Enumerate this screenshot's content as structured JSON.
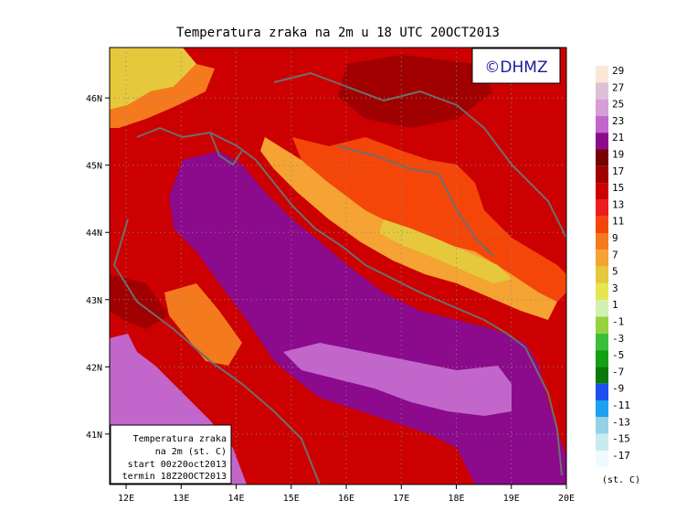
{
  "title": "Temperatura zraka na 2m u 18 UTC 20OCT2013",
  "watermark": "©DHMZ",
  "axes": {
    "x_ticks": [
      "12E",
      "13E",
      "14E",
      "15E",
      "16E",
      "17E",
      "18E",
      "19E",
      "20E"
    ],
    "y_ticks": [
      "46N",
      "45N",
      "44N",
      "43N",
      "42N",
      "41N"
    ]
  },
  "info_box": {
    "line1": "Temperatura zraka",
    "line2": "na 2m (st. C)",
    "line3": "start 00z20oct2013",
    "line4": "termin 18Z20OCT2013"
  },
  "legend": {
    "unit": "(st. C)",
    "labels": [
      "29",
      "27",
      "25",
      "23",
      "21",
      "19",
      "17",
      "15",
      "13",
      "11",
      "9",
      "7",
      "5",
      "3",
      "1",
      "-1",
      "-3",
      "-5",
      "-7",
      "-9",
      "-11",
      "-13",
      "-15",
      "-17"
    ],
    "colors": [
      "#fbe7d6",
      "#dcc1d6",
      "#d69ed6",
      "#c266cc",
      "#8c0a8c",
      "#780000",
      "#a00000",
      "#cc0000",
      "#ee1c1c",
      "#f5460a",
      "#f57a1e",
      "#f5a332",
      "#e6c83c",
      "#e6e650",
      "#d2f0b4",
      "#96d23c",
      "#3cbe3c",
      "#14a014",
      "#0a780a",
      "#1e50f0",
      "#1ea0f0",
      "#96d2e6",
      "#c8ebf0",
      "#eefaff"
    ]
  },
  "map": {
    "land_color": "#cc0000",
    "sea_color": "#8c0a8c",
    "warm_sea_color": "#c266cc",
    "highland_color": "#f5a332",
    "coast_color": "#6e6e6e"
  }
}
